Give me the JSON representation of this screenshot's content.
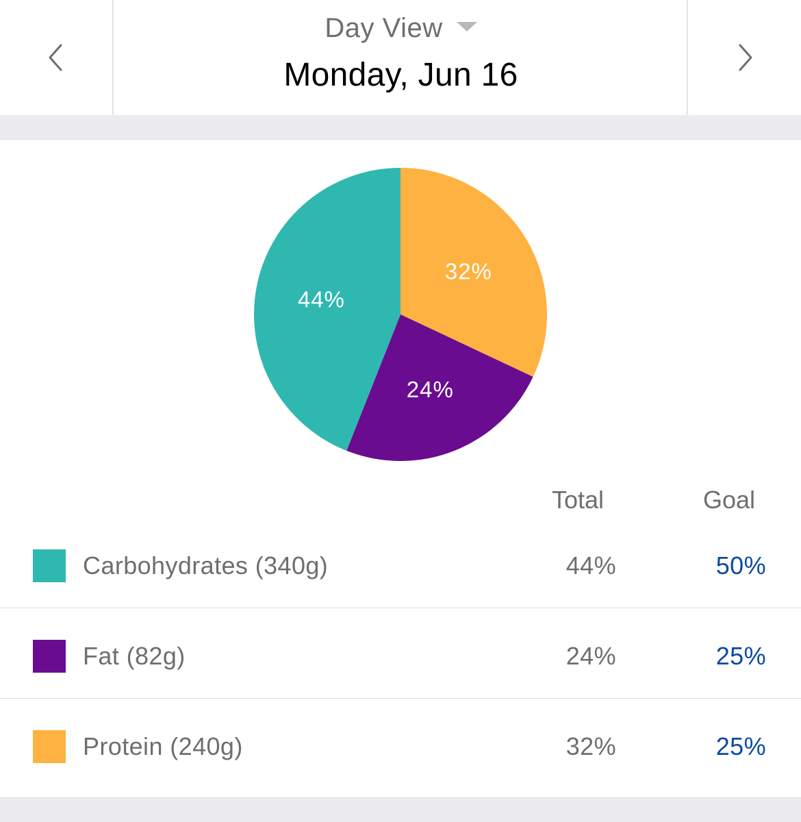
{
  "header": {
    "view_label": "Day View",
    "date": "Monday, Jun 16",
    "prev_icon": "chevron-left-icon",
    "next_icon": "chevron-right-icon",
    "dropdown_icon": "caret-down-icon"
  },
  "chart_data": {
    "type": "pie",
    "title": "",
    "categories": [
      "Protein",
      "Fat",
      "Carbohydrates"
    ],
    "values": [
      32,
      24,
      44
    ],
    "labels": [
      "32%",
      "24%",
      "44%"
    ],
    "colors": [
      "#fdb241",
      "#6a0c8f",
      "#2fb8b0"
    ],
    "start_angle_deg": 0,
    "direction": "clockwise"
  },
  "table": {
    "headers": {
      "total": "Total",
      "goal": "Goal"
    },
    "rows": [
      {
        "label": "Carbohydrates (340g)",
        "total": "44%",
        "goal": "50%",
        "color": "#2fb8b0"
      },
      {
        "label": "Fat (82g)",
        "total": "24%",
        "goal": "25%",
        "color": "#6a0c8f"
      },
      {
        "label": "Protein (240g)",
        "total": "32%",
        "goal": "25%",
        "color": "#fdb241"
      }
    ]
  },
  "colors": {
    "goal_text": "#0b4aa2",
    "muted_text": "#6e6e6e",
    "background": "#ebebf0"
  }
}
